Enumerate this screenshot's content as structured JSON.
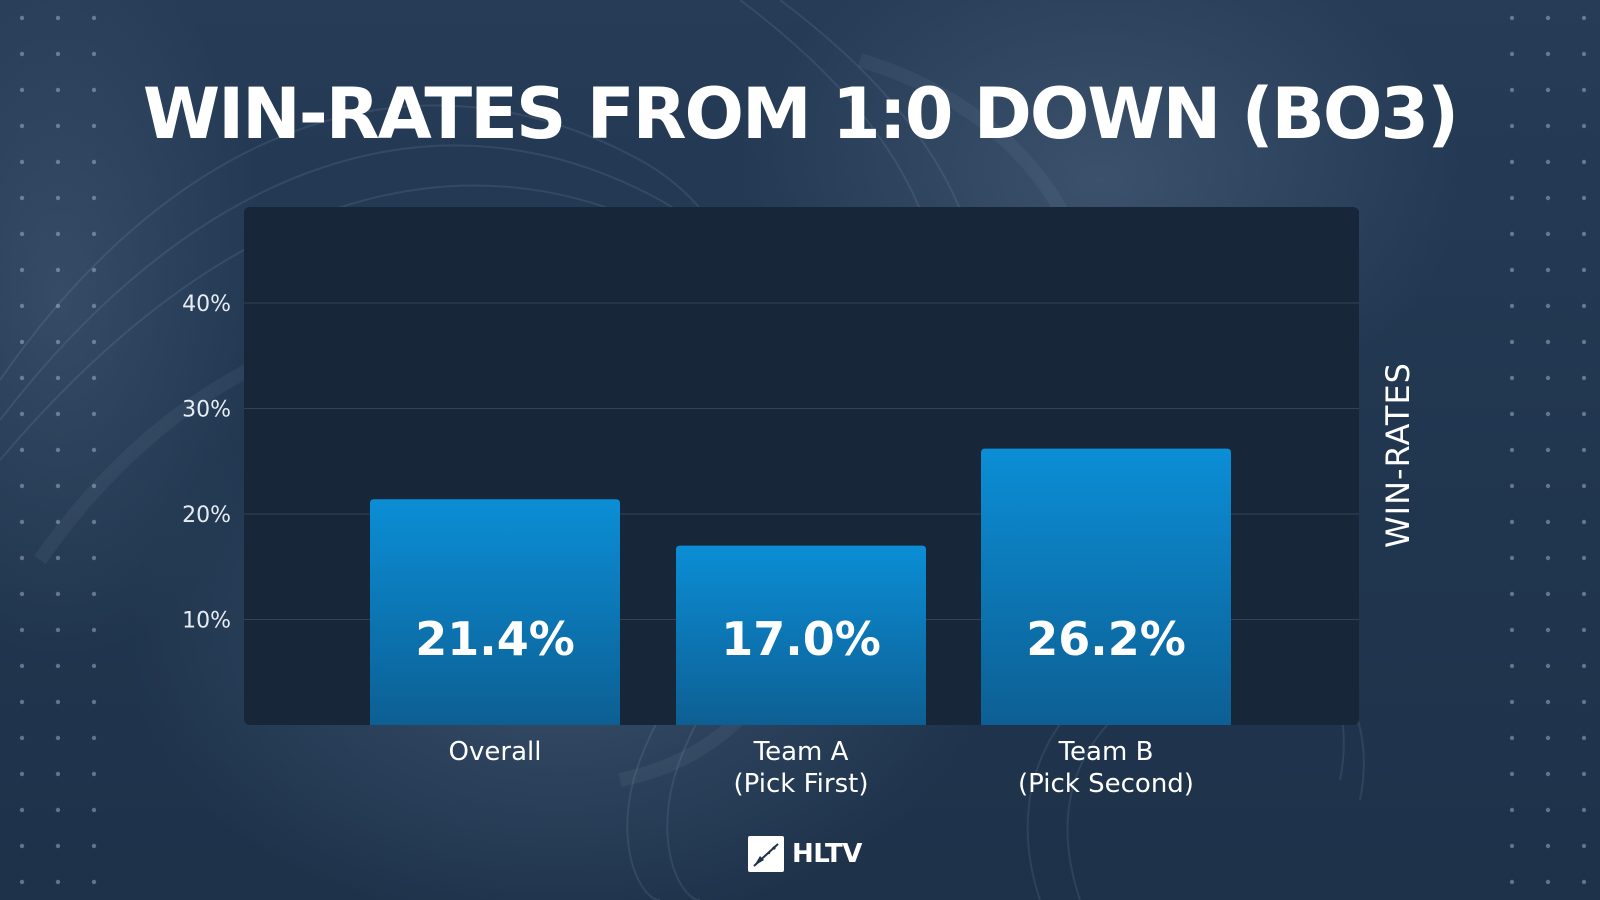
{
  "title": "WIN-RATES FROM 1:0 DOWN (BO3)",
  "logo_text": "HLTV",
  "colors": {
    "bar_top": "#0b8ed6",
    "bar_bottom": "#0d5f93",
    "panel": "#172638",
    "background": "#21364f"
  },
  "chart_data": {
    "type": "bar",
    "title": "WIN-RATES FROM 1:0 DOWN (BO3)",
    "xlabel": "",
    "ylabel": "WIN-RATES",
    "categories": [
      [
        "Overall"
      ],
      [
        "Team A",
        "(Pick First)"
      ],
      [
        "Team B",
        "(Pick Second)"
      ]
    ],
    "values": [
      21.4,
      17.0,
      26.2
    ],
    "value_labels": [
      "21.4%",
      "17.0%",
      "26.2%"
    ],
    "yticks": [
      10,
      20,
      30,
      40
    ],
    "ytick_labels": [
      "10%",
      "20%",
      "30%",
      "40%"
    ],
    "ylim": [
      0,
      50
    ],
    "grid": true
  }
}
